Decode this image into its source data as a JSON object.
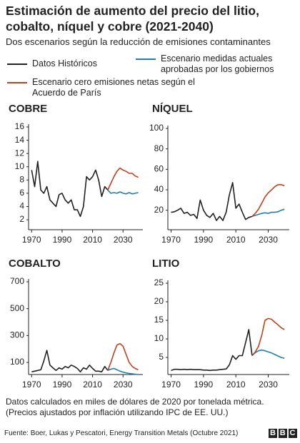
{
  "title": [
    "Estimación de aumento del precio del litio,",
    "cobalto, níquel y cobre (2021-2040)"
  ],
  "subtitle": "Dos escenarios según la reducción de emisiones contaminantes",
  "note": [
    "Datos calculados en miles de dólares de 2020 por tonelada métrica.",
    "(Precios ajustados por inflación utilizando IPC de EE. UU.)"
  ],
  "source": "Fuente: Boer, Lukas y Pescatori, Energy Transition Metals (Octubre 2021)",
  "logo": "BBC",
  "chart_data": [
    {
      "type": "line",
      "title": "COBRE",
      "x": [
        1970,
        1972,
        1974,
        1976,
        1978,
        1980,
        1982,
        1984,
        1986,
        1988,
        1990,
        1992,
        1994,
        1996,
        1998,
        2000,
        2002,
        2004,
        2006,
        2008,
        2010,
        2012,
        2014,
        2016,
        2018,
        2020,
        2022,
        2024,
        2026,
        2028,
        2030,
        2032,
        2034,
        2036,
        2038,
        2040
      ],
      "series": [
        {
          "name": "Datos Históricos",
          "color": "#222222",
          "values": [
            9.5,
            7,
            10.8,
            6.5,
            6,
            7,
            5,
            4.5,
            4,
            5.8,
            6,
            5,
            4.5,
            5,
            3.5,
            3.5,
            2.5,
            4,
            8.5,
            8,
            8.5,
            9.5,
            8,
            5.5,
            7,
            6.5,
            null,
            null,
            null,
            null,
            null,
            null,
            null,
            null,
            null,
            null
          ]
        },
        {
          "name": "Escenario medidas actuales aprobadas por los gobiernos",
          "color": "#1f7fb0",
          "values": [
            null,
            null,
            null,
            null,
            null,
            null,
            null,
            null,
            null,
            null,
            null,
            null,
            null,
            null,
            null,
            null,
            null,
            null,
            null,
            null,
            null,
            null,
            null,
            null,
            null,
            6.5,
            6,
            6.1,
            6,
            6.2,
            6,
            5.9,
            6.1,
            5.9,
            6,
            6.1
          ]
        },
        {
          "name": "Escenario cero emisiones netas según el Acuerdo de París",
          "color": "#c2411f",
          "values": [
            null,
            null,
            null,
            null,
            null,
            null,
            null,
            null,
            null,
            null,
            null,
            null,
            null,
            null,
            null,
            null,
            null,
            null,
            null,
            null,
            null,
            null,
            null,
            null,
            null,
            6.5,
            7.5,
            8.5,
            9.3,
            9.8,
            9.5,
            9.3,
            9,
            9,
            8.6,
            8.4
          ]
        }
      ],
      "xlim": [
        1968,
        2043
      ],
      "xticks": [
        1970,
        1990,
        2010,
        2030
      ],
      "ylim": [
        0.5,
        16
      ],
      "yticks": [
        2,
        4,
        6,
        8,
        10,
        12,
        14,
        16
      ]
    },
    {
      "type": "line",
      "title": "NÍQUEL",
      "x": [
        1970,
        1972,
        1974,
        1976,
        1978,
        1980,
        1982,
        1984,
        1986,
        1988,
        1990,
        1992,
        1994,
        1996,
        1998,
        2000,
        2002,
        2004,
        2006,
        2008,
        2010,
        2012,
        2014,
        2016,
        2018,
        2020,
        2022,
        2024,
        2026,
        2028,
        2030,
        2032,
        2034,
        2036,
        2038,
        2040
      ],
      "series": [
        {
          "color": "#222222",
          "values": [
            18,
            18.5,
            20,
            22,
            17,
            18,
            15,
            16,
            12,
            30,
            20,
            15,
            13,
            17,
            10,
            14,
            10,
            18,
            35,
            47,
            22,
            26,
            18,
            11,
            13,
            14,
            null,
            null,
            null,
            null,
            null,
            null,
            null,
            null,
            null,
            null
          ]
        },
        {
          "color": "#1f7fb0",
          "values": [
            null,
            null,
            null,
            null,
            null,
            null,
            null,
            null,
            null,
            null,
            null,
            null,
            null,
            null,
            null,
            null,
            null,
            null,
            null,
            null,
            null,
            null,
            null,
            null,
            null,
            14,
            15,
            16,
            17,
            17.5,
            17,
            18,
            18,
            18.5,
            20,
            21
          ]
        },
        {
          "color": "#c2411f",
          "values": [
            null,
            null,
            null,
            null,
            null,
            null,
            null,
            null,
            null,
            null,
            null,
            null,
            null,
            null,
            null,
            null,
            null,
            null,
            null,
            null,
            null,
            null,
            null,
            null,
            null,
            14,
            17,
            21,
            27,
            33,
            37,
            40,
            43,
            45,
            45,
            44
          ]
        }
      ],
      "xlim": [
        1968,
        2043
      ],
      "xticks": [
        1970,
        1990,
        2010,
        2030
      ],
      "ylim": [
        1,
        100
      ],
      "yticks": [
        20,
        40,
        60,
        80,
        100
      ]
    },
    {
      "type": "line",
      "title": "COBALTO",
      "x": [
        1970,
        1972,
        1974,
        1976,
        1978,
        1980,
        1982,
        1984,
        1986,
        1988,
        1990,
        1992,
        1994,
        1996,
        1998,
        2000,
        2002,
        2004,
        2006,
        2008,
        2010,
        2012,
        2014,
        2016,
        2018,
        2020,
        2022,
        2024,
        2026,
        2028,
        2030,
        2032,
        2034,
        2036,
        2038,
        2040
      ],
      "series": [
        {
          "color": "#222222",
          "values": [
            30,
            35,
            40,
            45,
            110,
            190,
            80,
            60,
            40,
            60,
            50,
            70,
            60,
            80,
            70,
            55,
            30,
            60,
            50,
            80,
            55,
            35,
            35,
            30,
            70,
            40,
            null,
            null,
            null,
            null,
            null,
            null,
            null,
            null,
            null,
            null
          ]
        },
        {
          "color": "#1f7fb0",
          "values": [
            null,
            null,
            null,
            null,
            null,
            null,
            null,
            null,
            null,
            null,
            null,
            null,
            null,
            null,
            null,
            null,
            null,
            null,
            null,
            null,
            null,
            null,
            null,
            null,
            null,
            40,
            50,
            55,
            45,
            35,
            28,
            22,
            18,
            15,
            12,
            10
          ]
        },
        {
          "color": "#c2411f",
          "values": [
            null,
            null,
            null,
            null,
            null,
            null,
            null,
            null,
            null,
            null,
            null,
            null,
            null,
            null,
            null,
            null,
            null,
            null,
            null,
            null,
            null,
            null,
            null,
            null,
            null,
            40,
            100,
            170,
            230,
            240,
            220,
            160,
            100,
            70,
            55,
            45
          ]
        }
      ],
      "xlim": [
        1968,
        2043
      ],
      "xticks": [
        1970,
        1990,
        2010,
        2030
      ],
      "ylim": [
        10,
        700
      ],
      "yticks": [
        100,
        300,
        500,
        700
      ]
    },
    {
      "type": "line",
      "title": "LITIO",
      "x": [
        1970,
        1972,
        1974,
        1976,
        1978,
        1980,
        1982,
        1984,
        1986,
        1988,
        1990,
        1992,
        1994,
        1996,
        1998,
        2000,
        2002,
        2004,
        2006,
        2008,
        2010,
        2012,
        2014,
        2016,
        2018,
        2020,
        2022,
        2024,
        2026,
        2028,
        2030,
        2032,
        2034,
        2036,
        2038,
        2040
      ],
      "series": [
        {
          "color": "#222222",
          "values": [
            1.5,
            1.8,
            1.8,
            1.7,
            1.8,
            1.7,
            1.8,
            1.7,
            1.7,
            1.7,
            1.6,
            1.6,
            1.5,
            1.6,
            1.6,
            1.7,
            1.8,
            1.9,
            3,
            5.5,
            4.5,
            5.5,
            5.5,
            9,
            12.5,
            5.5,
            null,
            null,
            null,
            null,
            null,
            null,
            null,
            null,
            null,
            null
          ]
        },
        {
          "color": "#1f7fb0",
          "values": [
            null,
            null,
            null,
            null,
            null,
            null,
            null,
            null,
            null,
            null,
            null,
            null,
            null,
            null,
            null,
            null,
            null,
            null,
            null,
            null,
            null,
            null,
            null,
            null,
            null,
            5.5,
            6.3,
            6.8,
            7,
            6.8,
            6.5,
            6.2,
            5.8,
            5.4,
            5,
            4.8
          ]
        },
        {
          "color": "#c2411f",
          "values": [
            null,
            null,
            null,
            null,
            null,
            null,
            null,
            null,
            null,
            null,
            null,
            null,
            null,
            null,
            null,
            null,
            null,
            null,
            null,
            null,
            null,
            null,
            null,
            null,
            null,
            5.5,
            6.5,
            8,
            11,
            15,
            15.5,
            15.3,
            14.5,
            13.8,
            13,
            12.5
          ]
        }
      ],
      "xlim": [
        1968,
        2043
      ],
      "xticks": [
        1970,
        1990,
        2010,
        2030
      ],
      "ylim": [
        0.4,
        25
      ],
      "yticks": [
        5,
        10,
        15,
        20,
        25
      ]
    }
  ]
}
